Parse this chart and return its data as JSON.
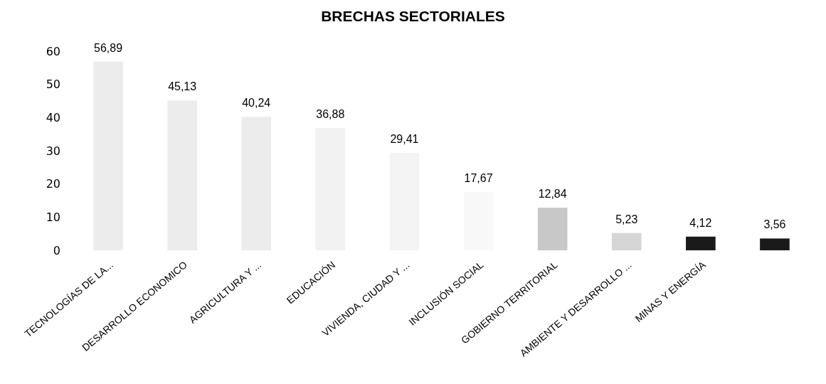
{
  "chart_data": {
    "type": "bar",
    "title": "BRECHAS SECTORIALES",
    "categories": [
      "TECNOLOGÍAS DE LA...",
      "DESARROLLO ECONOMICO",
      "AGRICULTURA Y ...",
      "EDUCACIÓN",
      "VIVIENDA, CIUDAD Y ...",
      "INCLUSIÓN SOCIAL",
      "GOBIERNO TERRITORIAL",
      "AMBIENTE Y DESARROLLO ...",
      "MINAS Y ENERGÍA",
      null
    ],
    "values": [
      56.89,
      45.13,
      40.24,
      36.88,
      29.41,
      17.67,
      12.84,
      5.23,
      4.12,
      3.56
    ],
    "colors": [
      "#ececec",
      "#ececec",
      "#ececec",
      "#f2f2f2",
      "#f4f4f4",
      "#f8f8f8",
      "#c8c8c8",
      "#d6d6d6",
      "#1a1a1a",
      "#1a1a1a"
    ],
    "value_labels": [
      "56,89",
      "45,13",
      "40,24",
      "36,88",
      "29,41",
      "17,67",
      "12,84",
      "5,23",
      "4,12",
      "3,56"
    ],
    "ylim": [
      0,
      60
    ],
    "yticks": [
      0,
      10,
      20,
      30,
      40,
      50,
      60
    ],
    "grid": false
  }
}
